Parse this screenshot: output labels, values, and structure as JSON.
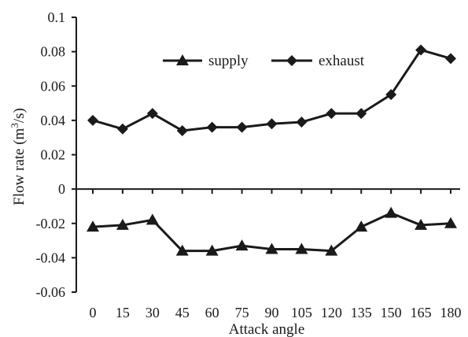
{
  "chart_data": {
    "type": "line",
    "title": "",
    "xlabel": "Attack angle",
    "ylabel_main": "Flow rate (m",
    "ylabel_sup": "3",
    "ylabel_end": "/s)",
    "categories": [
      "0",
      "15",
      "30",
      "45",
      "60",
      "75",
      "90",
      "105",
      "120",
      "135",
      "150",
      "165",
      "180"
    ],
    "ylim": [
      -0.06,
      0.1
    ],
    "yticks": [
      "0.1",
      "0.08",
      "0.06",
      "0.04",
      "0.02",
      "0",
      "-0.02",
      "-0.04",
      "-0.06"
    ],
    "ytick_values": [
      0.1,
      0.08,
      0.06,
      0.04,
      0.02,
      0,
      -0.02,
      -0.04,
      -0.06
    ],
    "grid": false,
    "legend_position": "top-center",
    "series": [
      {
        "name": "supply",
        "marker": "triangle",
        "values": [
          -0.022,
          -0.021,
          -0.018,
          -0.036,
          -0.036,
          -0.033,
          -0.035,
          -0.035,
          -0.036,
          -0.022,
          -0.014,
          -0.021,
          -0.02
        ]
      },
      {
        "name": "exhaust",
        "marker": "diamond",
        "values": [
          0.04,
          0.035,
          0.044,
          0.034,
          0.036,
          0.036,
          0.038,
          0.039,
          0.044,
          0.044,
          0.055,
          0.081,
          0.076
        ]
      }
    ],
    "colors": {
      "line": "#1a1a1a",
      "marker": "#1a1a1a"
    }
  }
}
